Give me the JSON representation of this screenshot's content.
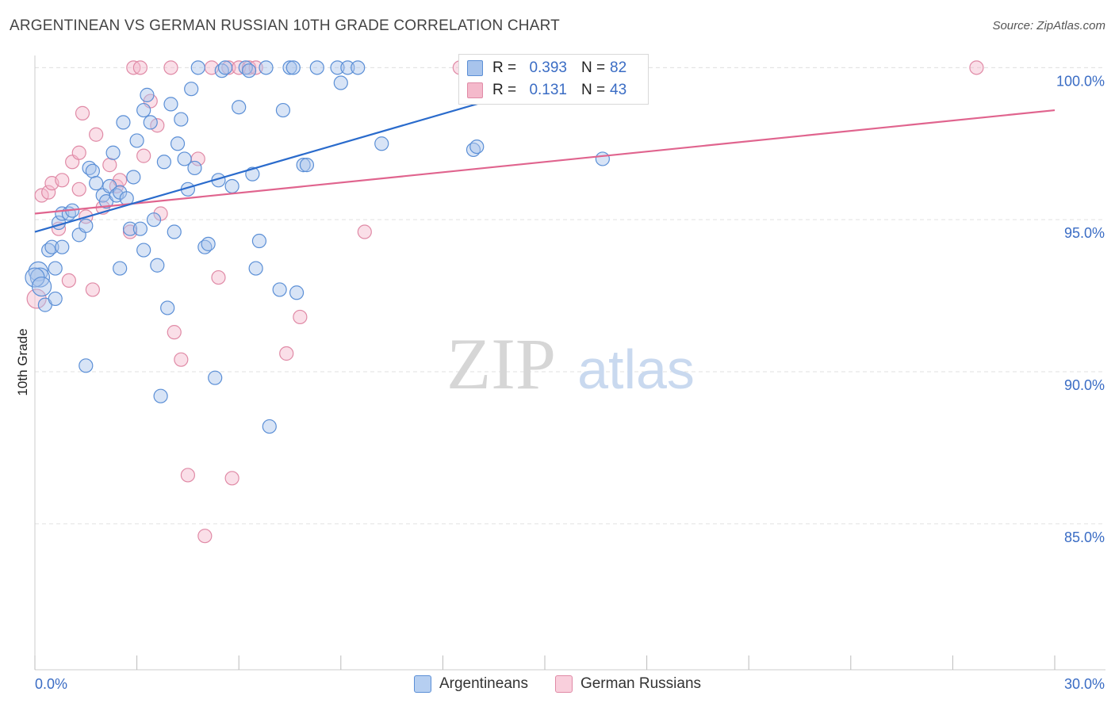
{
  "title": "ARGENTINEAN VS GERMAN RUSSIAN 10TH GRADE CORRELATION CHART",
  "source": "Source: ZipAtlas.com",
  "watermark": {
    "zip": "ZIP",
    "atlas": "atlas"
  },
  "colors": {
    "blue_fill": "#a8c4ec",
    "blue_stroke": "#5b8fd6",
    "blue_line": "#2a6bcc",
    "pink_fill": "#f4b9cb",
    "pink_stroke": "#e08aa6",
    "pink_line": "#e0648e",
    "axis_text": "#3a6cc4",
    "grid": "#e2e2e2"
  },
  "legend": {
    "rows": [
      {
        "r_label": "R =",
        "r_value": "0.393",
        "n_label": "N =",
        "n_value": "82"
      },
      {
        "r_label": "R =",
        "r_value": "0.131",
        "n_label": "N =",
        "n_value": "43"
      }
    ]
  },
  "chart_data": {
    "type": "scatter",
    "title": "ARGENTINEAN VS GERMAN RUSSIAN 10TH GRADE CORRELATION CHART",
    "xlabel": "",
    "ylabel": "10th Grade",
    "xlim": [
      0,
      30
    ],
    "ylim": [
      80.2,
      100.4
    ],
    "x_tick_labels": [
      "0.0%",
      "30.0%"
    ],
    "y_ticks": [
      85,
      90,
      95,
      100
    ],
    "y_tick_labels": [
      "85.0%",
      "90.0%",
      "95.0%",
      "100.0%"
    ],
    "grid": true,
    "series": [
      {
        "name": "Argentineans",
        "color": "#a8c4ec",
        "trend": {
          "x": [
            0,
            16.7
          ],
          "y": [
            94.6,
            100.0
          ]
        },
        "points": [
          [
            0.1,
            93.3
          ],
          [
            0.15,
            93.1
          ],
          [
            0.3,
            92.2
          ],
          [
            0.4,
            94.0
          ],
          [
            0.5,
            94.1
          ],
          [
            0.6,
            93.4
          ],
          [
            0.6,
            92.4
          ],
          [
            0.7,
            94.9
          ],
          [
            0.8,
            95.2
          ],
          [
            0.8,
            94.1
          ],
          [
            1.0,
            95.2
          ],
          [
            1.1,
            95.3
          ],
          [
            1.3,
            94.5
          ],
          [
            1.5,
            94.8
          ],
          [
            1.5,
            90.2
          ],
          [
            1.6,
            96.7
          ],
          [
            1.7,
            96.6
          ],
          [
            1.8,
            96.2
          ],
          [
            2.0,
            95.8
          ],
          [
            2.1,
            95.6
          ],
          [
            2.2,
            96.1
          ],
          [
            2.3,
            97.2
          ],
          [
            2.4,
            95.8
          ],
          [
            2.5,
            95.9
          ],
          [
            2.5,
            93.4
          ],
          [
            2.6,
            98.2
          ],
          [
            2.7,
            95.7
          ],
          [
            2.8,
            94.7
          ],
          [
            2.9,
            96.4
          ],
          [
            3.0,
            97.6
          ],
          [
            3.1,
            94.7
          ],
          [
            3.2,
            94.0
          ],
          [
            3.2,
            98.6
          ],
          [
            3.3,
            99.1
          ],
          [
            3.4,
            98.2
          ],
          [
            3.5,
            95.0
          ],
          [
            3.6,
            93.5
          ],
          [
            3.7,
            89.2
          ],
          [
            3.8,
            96.9
          ],
          [
            3.9,
            92.1
          ],
          [
            4.0,
            98.8
          ],
          [
            4.1,
            94.6
          ],
          [
            4.2,
            97.5
          ],
          [
            4.3,
            98.3
          ],
          [
            4.4,
            97.0
          ],
          [
            4.5,
            96.0
          ],
          [
            4.6,
            99.3
          ],
          [
            4.7,
            96.7
          ],
          [
            4.8,
            100.0
          ],
          [
            5.0,
            94.1
          ],
          [
            5.1,
            94.2
          ],
          [
            5.3,
            89.8
          ],
          [
            5.4,
            96.3
          ],
          [
            5.5,
            99.9
          ],
          [
            5.6,
            100.0
          ],
          [
            5.8,
            96.1
          ],
          [
            6.0,
            98.7
          ],
          [
            6.2,
            100.0
          ],
          [
            6.3,
            99.9
          ],
          [
            6.4,
            96.5
          ],
          [
            6.5,
            93.4
          ],
          [
            6.6,
            94.3
          ],
          [
            6.8,
            100.0
          ],
          [
            6.9,
            88.2
          ],
          [
            7.2,
            92.7
          ],
          [
            7.3,
            98.6
          ],
          [
            7.5,
            100.0
          ],
          [
            7.6,
            100.0
          ],
          [
            7.7,
            92.6
          ],
          [
            7.9,
            96.8
          ],
          [
            8.0,
            96.8
          ],
          [
            8.3,
            100.0
          ],
          [
            8.9,
            100.0
          ],
          [
            9.0,
            99.5
          ],
          [
            9.2,
            100.0
          ],
          [
            9.5,
            100.0
          ],
          [
            10.2,
            97.5
          ],
          [
            12.9,
            97.3
          ],
          [
            13.0,
            97.4
          ],
          [
            16.7,
            97.0
          ],
          [
            0.0,
            93.1
          ],
          [
            0.2,
            92.8
          ]
        ]
      },
      {
        "name": "German Russians",
        "color": "#f4b9cb",
        "trend": {
          "x": [
            0,
            30
          ],
          "y": [
            95.2,
            98.6
          ]
        },
        "points": [
          [
            0.05,
            92.4
          ],
          [
            0.2,
            95.8
          ],
          [
            0.4,
            95.9
          ],
          [
            0.5,
            96.2
          ],
          [
            0.7,
            94.7
          ],
          [
            0.8,
            96.3
          ],
          [
            1.0,
            93.0
          ],
          [
            1.1,
            96.9
          ],
          [
            1.3,
            96.0
          ],
          [
            1.3,
            97.2
          ],
          [
            1.4,
            98.5
          ],
          [
            1.5,
            95.1
          ],
          [
            1.7,
            92.7
          ],
          [
            1.8,
            97.8
          ],
          [
            2.0,
            95.4
          ],
          [
            2.2,
            96.8
          ],
          [
            2.4,
            96.1
          ],
          [
            2.5,
            96.3
          ],
          [
            2.8,
            94.6
          ],
          [
            2.9,
            100.0
          ],
          [
            3.1,
            100.0
          ],
          [
            3.2,
            97.1
          ],
          [
            3.4,
            98.9
          ],
          [
            3.6,
            98.1
          ],
          [
            3.7,
            95.2
          ],
          [
            4.0,
            100.0
          ],
          [
            4.1,
            91.3
          ],
          [
            4.3,
            90.4
          ],
          [
            4.5,
            86.6
          ],
          [
            4.8,
            97.0
          ],
          [
            5.0,
            84.6
          ],
          [
            5.2,
            100.0
          ],
          [
            5.4,
            93.1
          ],
          [
            5.7,
            100.0
          ],
          [
            5.8,
            86.5
          ],
          [
            6.0,
            100.0
          ],
          [
            6.3,
            100.0
          ],
          [
            6.5,
            100.0
          ],
          [
            7.4,
            90.6
          ],
          [
            7.8,
            91.8
          ],
          [
            9.7,
            94.6
          ],
          [
            12.5,
            100.0
          ],
          [
            27.7,
            100.0
          ]
        ]
      }
    ]
  },
  "bottom_legend": [
    {
      "label": "Argentineans"
    },
    {
      "label": "German Russians"
    }
  ]
}
